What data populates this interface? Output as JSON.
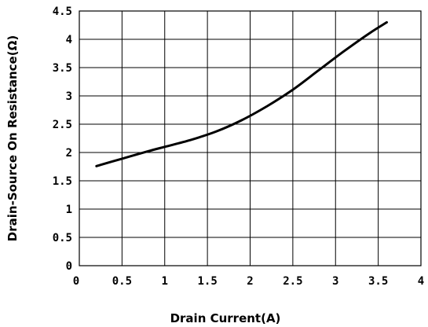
{
  "chart_data": {
    "type": "line",
    "title": "",
    "xlabel": "Drain Current(A)",
    "ylabel": "Drain-Source On Resistance(Ω)",
    "xlim": [
      0,
      4
    ],
    "ylim": [
      0,
      4.5
    ],
    "xticks": [
      "0",
      "0.5",
      "1",
      "1.5",
      "2",
      "2.5",
      "3",
      "3.5",
      "4"
    ],
    "yticks": [
      "0",
      "0.5",
      "1",
      "1.5",
      "2",
      "2.5",
      "3",
      "3.5",
      "4",
      "4.5"
    ],
    "grid": true,
    "series": [
      {
        "x": [
          0.2,
          0.5,
          0.8,
          1.0,
          1.3,
          1.6,
          1.9,
          2.2,
          2.5,
          2.8,
          3.1,
          3.4,
          3.6
        ],
        "y": [
          1.76,
          1.89,
          2.02,
          2.1,
          2.22,
          2.37,
          2.57,
          2.82,
          3.11,
          3.45,
          3.79,
          4.11,
          4.3
        ]
      }
    ]
  }
}
